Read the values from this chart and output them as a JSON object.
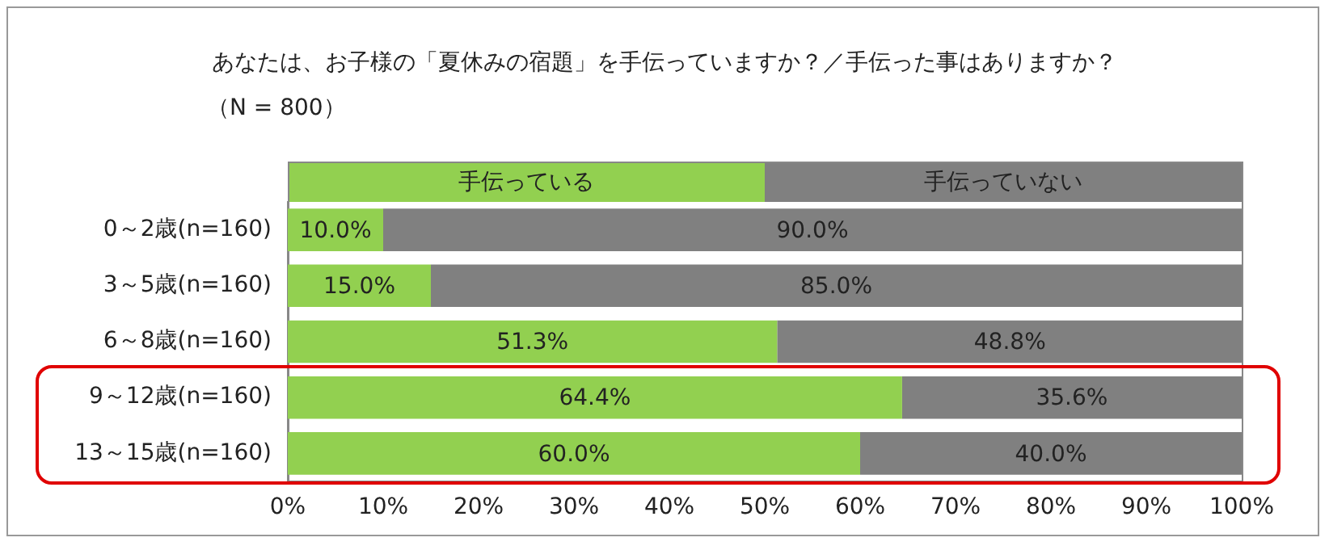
{
  "chart_data": {
    "type": "bar",
    "orientation": "horizontal",
    "stacked": true,
    "title": "あなたは、お子様の「夏休みの宿題」を手伝っていますか？／手伝った事はありますか？",
    "subtitle": "（N = 800）",
    "categories": [
      "0～2歳(n=160)",
      "3～5歳(n=160)",
      "6～8歳(n=160)",
      "9～12歳(n=160)",
      "13～15歳(n=160)"
    ],
    "series": [
      {
        "name": "手伝っている",
        "color": "#92d050",
        "values": [
          10.0,
          15.0,
          51.3,
          64.4,
          60.0
        ],
        "value_labels": [
          "10.0%",
          "15.0%",
          "51.3%",
          "64.4%",
          "60.0%"
        ]
      },
      {
        "name": "手伝っていない",
        "color": "#808080",
        "values": [
          90.0,
          85.0,
          48.8,
          35.6,
          40.0
        ],
        "value_labels": [
          "90.0%",
          "85.0%",
          "48.8%",
          "35.6%",
          "40.0%"
        ]
      }
    ],
    "xlim": [
      0,
      100
    ],
    "xticks": [
      {
        "value": 0,
        "label": "0%"
      },
      {
        "value": 10,
        "label": "10%"
      },
      {
        "value": 20,
        "label": "20%"
      },
      {
        "value": 30,
        "label": "30%"
      },
      {
        "value": 40,
        "label": "40%"
      },
      {
        "value": 50,
        "label": "50%"
      },
      {
        "value": 60,
        "label": "60%"
      },
      {
        "value": 70,
        "label": "70%"
      },
      {
        "value": 80,
        "label": "80%"
      },
      {
        "value": 90,
        "label": "90%"
      },
      {
        "value": 100,
        "label": "100%"
      }
    ],
    "grid": false,
    "legend": "top"
  }
}
